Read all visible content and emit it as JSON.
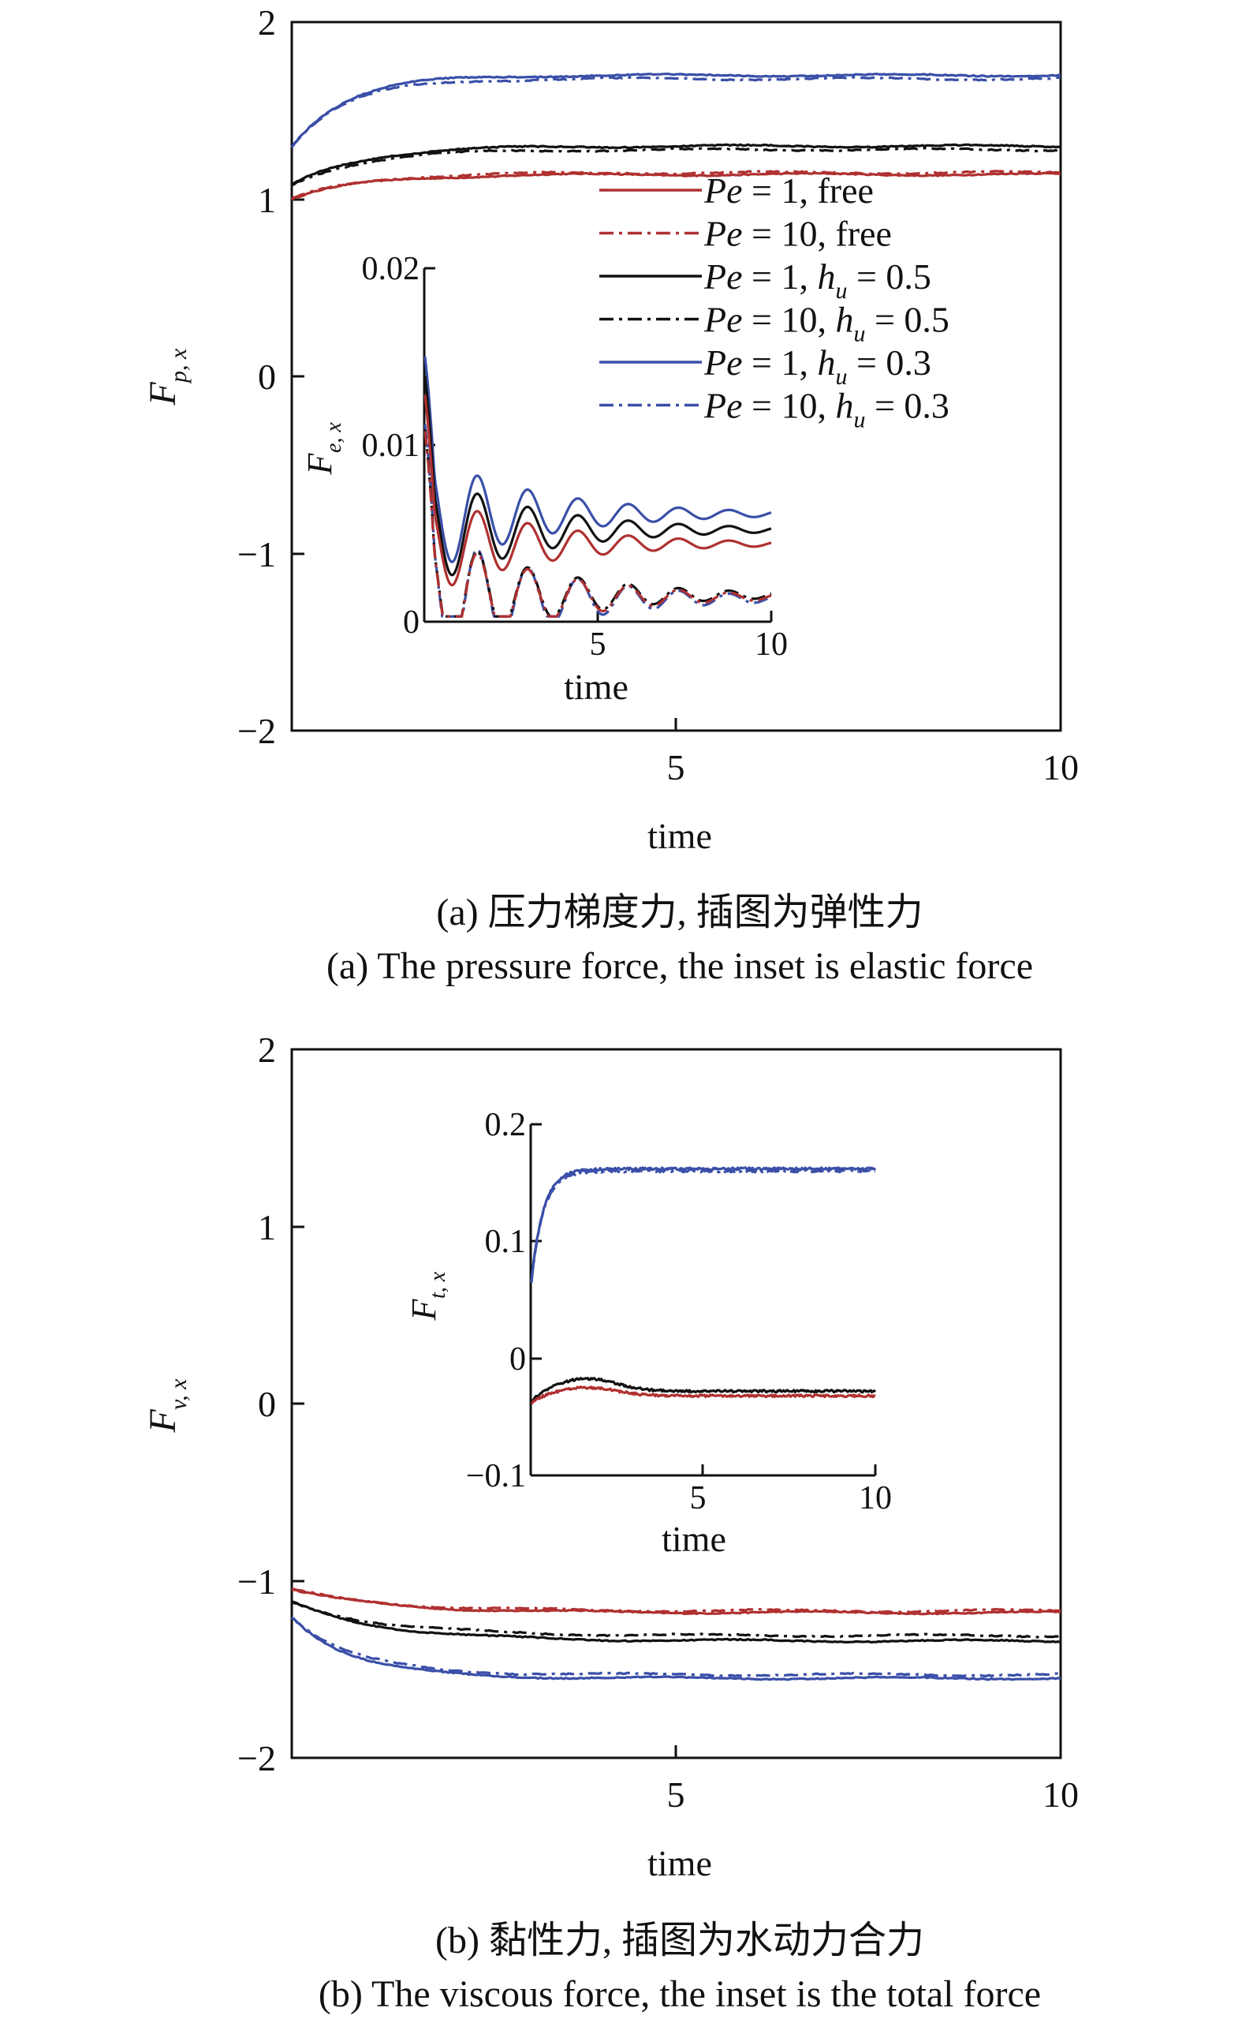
{
  "chart_data": [
    {
      "type": "line",
      "panel": "a",
      "xlabel": "time",
      "ylabel": {
        "base": "F",
        "sub": "p, x"
      },
      "xlim": [
        0,
        10
      ],
      "ylim": [
        -2,
        2
      ],
      "xticks": [
        5,
        10
      ],
      "yticks": [
        2,
        1,
        0,
        -1,
        -2
      ],
      "series": [
        {
          "name": "Pe = 1, free",
          "color": "#b03030",
          "dash": "solid",
          "plateau": 1.14,
          "start": 1.0,
          "tau": 0.9
        },
        {
          "name": "Pe = 10, free",
          "color": "#b03030",
          "dash": "dashdot",
          "plateau": 1.15,
          "start": 1.0,
          "tau": 0.9
        },
        {
          "name": "Pe = 1, hu = 0.5",
          "color": "#111111",
          "dash": "solid",
          "plateau": 1.3,
          "start": 1.08,
          "tau": 0.9
        },
        {
          "name": "Pe = 10, hu = 0.5",
          "color": "#111111",
          "dash": "dashdot",
          "plateau": 1.28,
          "start": 1.08,
          "tau": 0.9
        },
        {
          "name": "Pe = 1, hu = 0.3",
          "color": "#3a4fa8",
          "dash": "solid",
          "plateau": 1.7,
          "start": 1.3,
          "tau": 0.7
        },
        {
          "name": "Pe = 10, hu = 0.3",
          "color": "#3a4fa8",
          "dash": "dashdot",
          "plateau": 1.68,
          "start": 1.3,
          "tau": 0.7
        }
      ],
      "legend": {
        "placement": "top-right",
        "entries": [
          {
            "color": "#b03030",
            "dash": "solid",
            "pe": "Pe",
            "mid": " = 1, ",
            "tail": "free",
            "hu": ""
          },
          {
            "color": "#b03030",
            "dash": "dashdot",
            "pe": "Pe",
            "mid": " = 10, ",
            "tail": "free",
            "hu": ""
          },
          {
            "color": "#111111",
            "dash": "solid",
            "pe": "Pe",
            "mid": " = 1, ",
            "tail": " = 0.5",
            "hu": "h"
          },
          {
            "color": "#111111",
            "dash": "dashdot",
            "pe": "Pe",
            "mid": " = 10, ",
            "tail": " = 0.5",
            "hu": "h"
          },
          {
            "color": "#3a4fa8",
            "dash": "solid",
            "pe": "Pe",
            "mid": " = 1, ",
            "tail": " = 0.3",
            "hu": "h"
          },
          {
            "color": "#3a4fa8",
            "dash": "dashdot",
            "pe": "Pe",
            "mid": " = 10, ",
            "tail": " = 0.3",
            "hu": "h"
          }
        ],
        "hu_sub": "u"
      },
      "caption_cn": "(a) 压力梯度力, 插图为弹性力",
      "caption_en": "(a) The pressure force, the inset is elastic force",
      "inset": {
        "type": "line",
        "xlabel": "time",
        "ylabel": {
          "base": "F",
          "sub": "e, x"
        },
        "xlim": [
          0,
          10
        ],
        "ylim": [
          0,
          0.02
        ],
        "xticks": [
          5,
          10
        ],
        "yticks": [
          "0.02",
          "0.01",
          "0"
        ],
        "series": [
          {
            "color": "#3a4fa8",
            "dash": "solid",
            "plateau": 0.0061,
            "amp": 0.0035
          },
          {
            "color": "#111111",
            "dash": "solid",
            "plateau": 0.0052,
            "amp": 0.0033
          },
          {
            "color": "#b03030",
            "dash": "solid",
            "plateau": 0.0044,
            "amp": 0.003
          },
          {
            "color": "#3a4fa8",
            "dash": "dashdot",
            "plateau": 0.0013,
            "amp": 0.0045
          },
          {
            "color": "#111111",
            "dash": "dashdot",
            "plateau": 0.0015,
            "amp": 0.004
          },
          {
            "color": "#b03030",
            "dash": "dashdot",
            "plateau": 0.0014,
            "amp": 0.004
          }
        ]
      }
    },
    {
      "type": "line",
      "panel": "b",
      "xlabel": "time",
      "ylabel": {
        "base": "F",
        "sub": "v, x"
      },
      "xlim": [
        0,
        10
      ],
      "ylim": [
        -2,
        2
      ],
      "xticks": [
        5,
        10
      ],
      "yticks": [
        2,
        1,
        0,
        -1,
        -2
      ],
      "series": [
        {
          "color": "#b03030",
          "dash": "solid",
          "plateau": -1.18,
          "start": -1.05,
          "tau": 1.2
        },
        {
          "color": "#b03030",
          "dash": "dashdot",
          "plateau": -1.17,
          "start": -1.05,
          "tau": 1.2
        },
        {
          "color": "#111111",
          "dash": "solid",
          "plateau": -1.34,
          "start": -1.12,
          "tau": 1.2
        },
        {
          "color": "#111111",
          "dash": "dashdot",
          "plateau": -1.31,
          "start": -1.12,
          "tau": 1.2
        },
        {
          "color": "#3a4fa8",
          "dash": "solid",
          "plateau": -1.55,
          "start": -1.2,
          "tau": 0.8
        },
        {
          "color": "#3a4fa8",
          "dash": "dashdot",
          "plateau": -1.53,
          "start": -1.2,
          "tau": 0.8
        }
      ],
      "caption_cn": "(b) 黏性力, 插图为水动力合力",
      "caption_en": "(b) The viscous force, the inset is the total force",
      "inset": {
        "type": "line",
        "xlabel": "time",
        "ylabel": {
          "base": "F",
          "sub": "t, x"
        },
        "xlim": [
          0,
          10
        ],
        "ylim": [
          -0.1,
          0.2
        ],
        "xticks": [
          5,
          10
        ],
        "yticks": [
          "0.2",
          "0.1",
          "0",
          "−0.1"
        ],
        "series": [
          {
            "color": "#3a4fa8",
            "dash": "solid",
            "plateau": 0.162,
            "start": 0.06
          },
          {
            "color": "#3a4fa8",
            "dash": "dashdot",
            "plateau": 0.16,
            "start": 0.06
          },
          {
            "color": "#111111",
            "dash": "solid",
            "plateau": -0.028,
            "start": -0.04
          },
          {
            "color": "#b03030",
            "dash": "solid",
            "plateau": -0.032,
            "start": -0.04
          }
        ]
      }
    }
  ]
}
